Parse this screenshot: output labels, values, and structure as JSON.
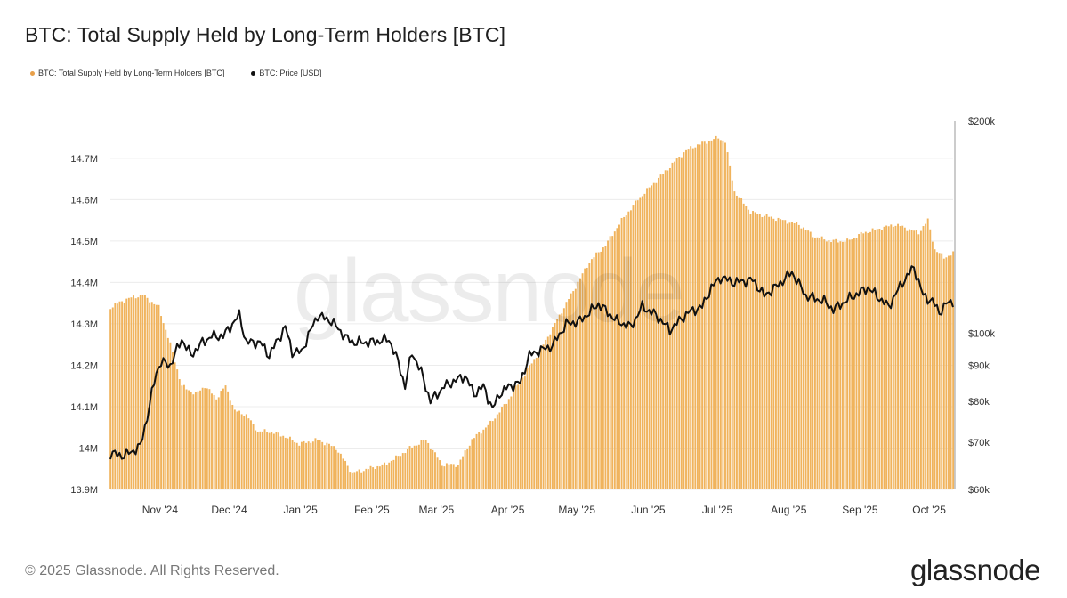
{
  "title": "BTC: Total Supply Held by Long-Term Holders [BTC]",
  "footer": "© 2025 Glassnode. All Rights Reserved.",
  "logo": "glassnode",
  "watermark": "glassnode",
  "colors": {
    "supply": "#f0b35c",
    "supply_dot": "#e8a04a",
    "price": "#111111",
    "grid": "#ececec"
  },
  "chart_data": {
    "type": "bar",
    "title": "BTC: Total Supply Held by Long-Term Holders [BTC]",
    "legend_placement": "top-left",
    "grid": true,
    "x_axis": {
      "ticks": [
        "Nov '24",
        "Dec '24",
        "Jan '25",
        "Feb '25",
        "Mar '25",
        "Apr '25",
        "May '25",
        "Jun '25",
        "Jul '25",
        "Aug '25",
        "Sep '25",
        "Oct '25"
      ],
      "range": [
        "2024-10-22",
        "2025-10-23"
      ]
    },
    "y_left": {
      "ticks": [
        "13.9M",
        "14M",
        "14.1M",
        "14.2M",
        "14.3M",
        "14.4M",
        "14.5M",
        "14.6M",
        "14.7M"
      ],
      "ylim": [
        13.9,
        14.79
      ],
      "unit": "M BTC"
    },
    "y_right": {
      "ticks": [
        "$60k",
        "$70k",
        "$80k",
        "$90k",
        "$100k",
        "$200k"
      ],
      "scale": "log",
      "ylim": [
        60000,
        200000
      ]
    },
    "series": [
      {
        "name": "BTC: Total Supply Held by Long-Term Holders [BTC]",
        "axis": "left",
        "x": [
          "2024-10-22",
          "2024-10-29",
          "2024-11-05",
          "2024-11-12",
          "2024-11-17",
          "2024-11-22",
          "2024-11-28",
          "2024-12-02",
          "2024-12-07",
          "2024-12-11",
          "2024-12-15",
          "2024-12-20",
          "2024-12-25",
          "2024-12-30",
          "2025-01-05",
          "2025-01-12",
          "2025-01-20",
          "2025-01-28",
          "2025-02-04",
          "2025-02-11",
          "2025-02-18",
          "2025-02-24",
          "2025-03-01",
          "2025-03-08",
          "2025-03-15",
          "2025-03-22",
          "2025-03-28",
          "2025-04-05",
          "2025-04-12",
          "2025-04-20",
          "2025-04-27",
          "2025-05-04",
          "2025-05-11",
          "2025-05-18",
          "2025-05-25",
          "2025-06-01",
          "2025-06-08",
          "2025-06-15",
          "2025-06-22",
          "2025-06-29",
          "2025-07-03",
          "2025-07-08",
          "2025-07-13",
          "2025-07-16",
          "2025-07-20",
          "2025-07-27",
          "2025-08-03",
          "2025-08-10",
          "2025-08-17",
          "2025-08-24",
          "2025-08-31",
          "2025-09-07",
          "2025-09-14",
          "2025-09-21",
          "2025-09-28",
          "2025-10-03",
          "2025-10-08",
          "2025-10-12",
          "2025-10-15",
          "2025-10-19",
          "2025-10-23"
        ],
        "values": [
          14.34,
          14.36,
          14.37,
          14.34,
          14.25,
          14.15,
          14.13,
          14.15,
          14.12,
          14.15,
          14.09,
          14.08,
          14.04,
          14.04,
          14.03,
          14.01,
          14.02,
          14.0,
          13.94,
          13.95,
          13.96,
          13.98,
          14.0,
          14.02,
          13.96,
          13.96,
          14.02,
          14.06,
          14.11,
          14.18,
          14.24,
          14.31,
          14.38,
          14.45,
          14.49,
          14.55,
          14.6,
          14.64,
          14.68,
          14.72,
          14.73,
          14.74,
          14.75,
          14.74,
          14.62,
          14.57,
          14.56,
          14.55,
          14.54,
          14.51,
          14.5,
          14.5,
          14.52,
          14.53,
          14.54,
          14.53,
          14.52,
          14.55,
          14.48,
          14.46,
          14.47
        ]
      },
      {
        "name": "BTC: Price [USD]",
        "axis": "right",
        "x": [
          "2024-10-22",
          "2024-10-28",
          "2024-11-04",
          "2024-11-07",
          "2024-11-11",
          "2024-11-13",
          "2024-11-17",
          "2024-11-22",
          "2024-11-26",
          "2024-12-01",
          "2024-12-05",
          "2024-12-10",
          "2024-12-17",
          "2024-12-20",
          "2024-12-26",
          "2024-12-30",
          "2025-01-06",
          "2025-01-09",
          "2025-01-13",
          "2025-01-20",
          "2025-01-26",
          "2025-02-02",
          "2025-02-05",
          "2025-02-12",
          "2025-02-20",
          "2025-02-24",
          "2025-02-27",
          "2025-03-02",
          "2025-03-06",
          "2025-03-10",
          "2025-03-16",
          "2025-03-25",
          "2025-03-29",
          "2025-04-02",
          "2025-04-06",
          "2025-04-09",
          "2025-04-13",
          "2025-04-18",
          "2025-04-22",
          "2025-04-25",
          "2025-05-02",
          "2025-05-08",
          "2025-05-14",
          "2025-05-22",
          "2025-05-30",
          "2025-06-05",
          "2025-06-10",
          "2025-06-16",
          "2025-06-22",
          "2025-06-30",
          "2025-07-06",
          "2025-07-10",
          "2025-07-14",
          "2025-07-20",
          "2025-07-28",
          "2025-08-02",
          "2025-08-08",
          "2025-08-14",
          "2025-08-20",
          "2025-08-28",
          "2025-09-01",
          "2025-09-08",
          "2025-09-16",
          "2025-09-25",
          "2025-10-01",
          "2025-10-06",
          "2025-10-10",
          "2025-10-14",
          "2025-10-17",
          "2025-10-20",
          "2025-10-23"
        ],
        "values": [
          67500,
          67000,
          69000,
          76000,
          88000,
          91000,
          90000,
          98000,
          93000,
          97000,
          99000,
          99000,
          106000,
          97000,
          97000,
          93000,
          102000,
          94000,
          94000,
          106000,
          104000,
          98000,
          97000,
          97000,
          98000,
          91000,
          84000,
          94000,
          88000,
          80000,
          84000,
          87000,
          82000,
          84000,
          78000,
          82000,
          84000,
          85000,
          93000,
          94000,
          96000,
          103000,
          104000,
          110000,
          104000,
          102000,
          109000,
          106000,
          101000,
          107000,
          109000,
          116000,
          120000,
          118000,
          119000,
          113000,
          117000,
          122000,
          113000,
          111000,
          108000,
          112000,
          116000,
          109000,
          118000,
          124000,
          113000,
          111000,
          107000,
          110000,
          111000
        ]
      }
    ]
  }
}
